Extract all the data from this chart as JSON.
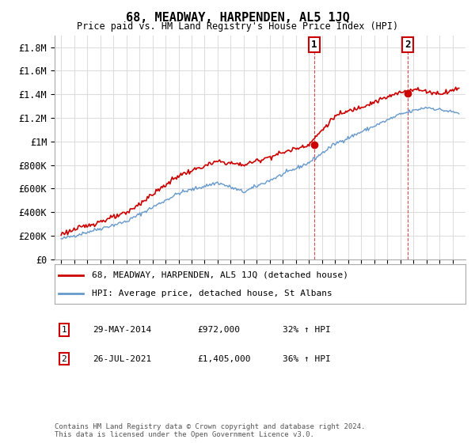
{
  "title": "68, MEADWAY, HARPENDEN, AL5 1JQ",
  "subtitle": "Price paid vs. HM Land Registry's House Price Index (HPI)",
  "red_label": "68, MEADWAY, HARPENDEN, AL5 1JQ (detached house)",
  "blue_label": "HPI: Average price, detached house, St Albans",
  "annotation1": {
    "num": "1",
    "date": "29-MAY-2014",
    "price": "£972,000",
    "pct": "32% ↑ HPI",
    "year": 2014.4,
    "value": 972000
  },
  "annotation2": {
    "num": "2",
    "date": "26-JUL-2021",
    "price": "£1,405,000",
    "pct": "36% ↑ HPI",
    "year": 2021.55,
    "value": 1405000
  },
  "footer": "Contains HM Land Registry data © Crown copyright and database right 2024.\nThis data is licensed under the Open Government Licence v3.0.",
  "ylim": [
    0,
    1900000
  ],
  "yticks": [
    0,
    200000,
    400000,
    600000,
    800000,
    1000000,
    1200000,
    1400000,
    1600000,
    1800000
  ],
  "ytick_labels": [
    "£0",
    "£200K",
    "£400K",
    "£600K",
    "£800K",
    "£1M",
    "£1.2M",
    "£1.4M",
    "£1.6M",
    "£1.8M"
  ],
  "red_color": "#cc0000",
  "blue_color": "#6699cc",
  "vline_color": "#cc0000",
  "background_color": "#ffffff",
  "grid_color": "#dddddd"
}
